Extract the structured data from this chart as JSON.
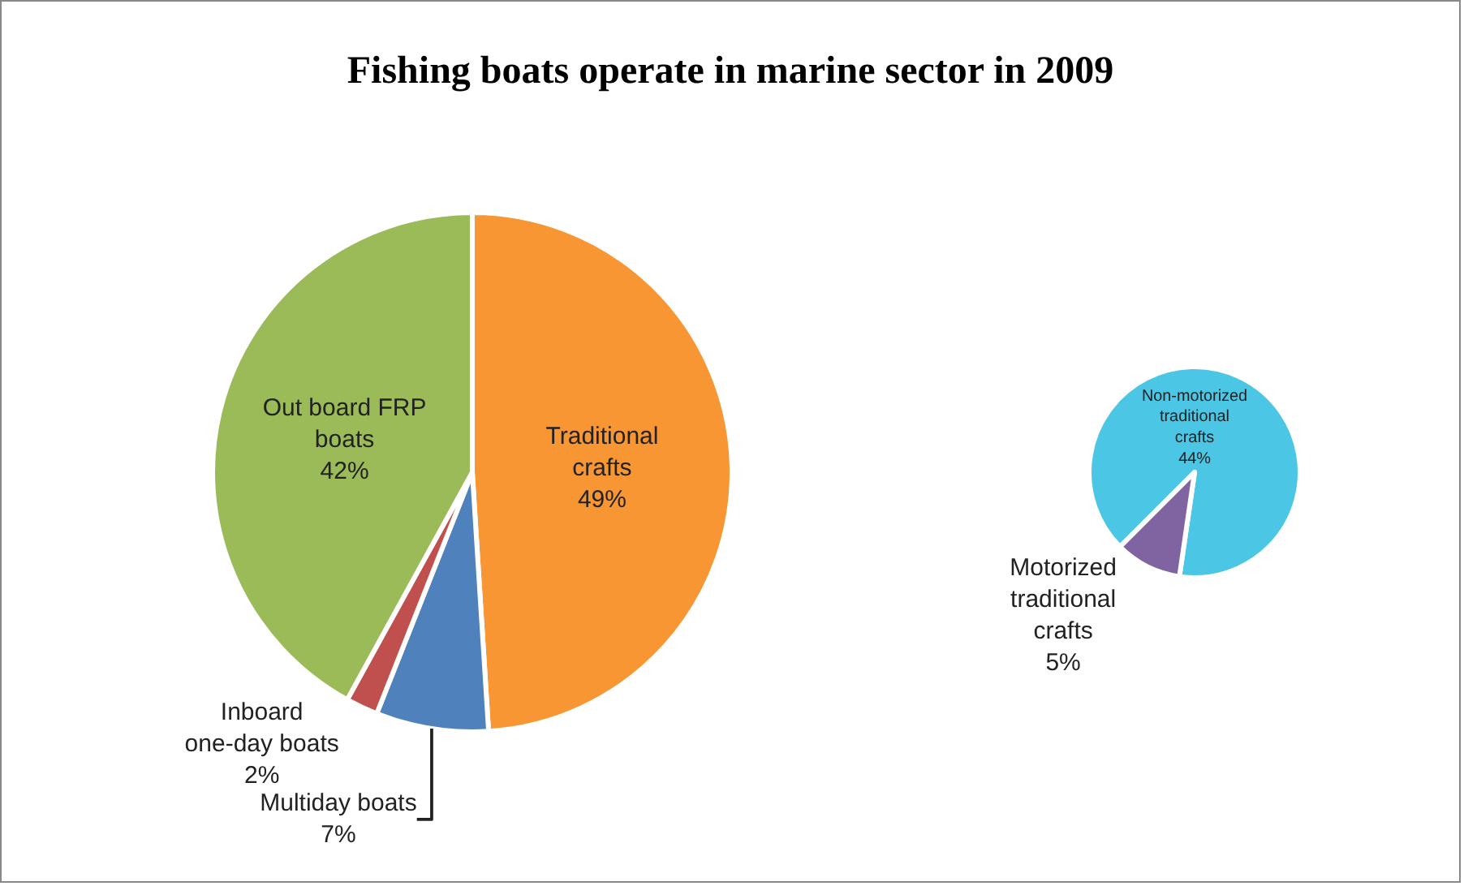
{
  "chart_data": [
    {
      "type": "pie",
      "title": "Fishing boats operate in marine sector in 2009",
      "categories": [
        "Traditional crafts",
        "Multiday boats",
        "Inboard one-day boats",
        "Out board FRP boats"
      ],
      "values": [
        49,
        7,
        2,
        42
      ],
      "value_labels": [
        "49%",
        "7%",
        "2%",
        "42%"
      ],
      "colors": [
        "#f79633",
        "#4f81bd",
        "#c0504d",
        "#9bbb59"
      ],
      "legend": false
    },
    {
      "type": "pie",
      "categories": [
        "Non-motorized traditional crafts",
        "Motorized traditional crafts"
      ],
      "values": [
        44,
        5
      ],
      "value_labels": [
        "44%",
        "5%"
      ],
      "colors": [
        "#4bc6e4",
        "#8064a2"
      ],
      "legend": false
    }
  ]
}
